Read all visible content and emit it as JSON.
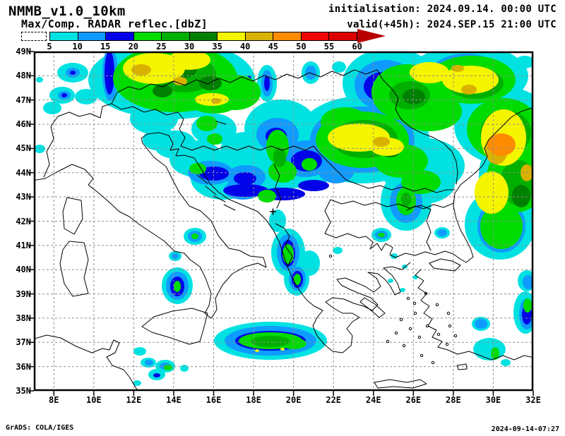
{
  "header": {
    "model_title": "NMMB_v1.0_10km",
    "product_title": "Max/Comp. RADAR reflec.[dbZ]",
    "initialisation": "initialisation: 2024.09.14. 00:00 UTC",
    "valid": "valid(+45h): 2024.SEP.15 21:00 UTC"
  },
  "colorbar": {
    "tick_labels": [
      "5",
      "10",
      "15",
      "20",
      "25",
      "30",
      "35",
      "40",
      "45",
      "50",
      "55",
      "60"
    ],
    "segment_colors": [
      "#00E2E2",
      "#0F9BFF",
      "#0202E8",
      "#00DC00",
      "#00AF00",
      "#008000",
      "#F5F500",
      "#D9B200",
      "#FF8C00",
      "#F00505",
      "#DD0000"
    ],
    "arrow_color": "#B80000"
  },
  "map": {
    "lat_labels": [
      "49N",
      "48N",
      "47N",
      "46N",
      "45N",
      "44N",
      "43N",
      "42N",
      "41N",
      "40N",
      "39N",
      "38N",
      "37N",
      "36N",
      "35N"
    ],
    "lon_labels": [
      "8E",
      "10E",
      "12E",
      "14E",
      "16E",
      "18E",
      "20E",
      "22E",
      "24E",
      "26E",
      "28E",
      "30E",
      "32E"
    ]
  },
  "footer": {
    "left": "GrADS: COLA/IGES",
    "right": "2024-09-14-07:27"
  }
}
